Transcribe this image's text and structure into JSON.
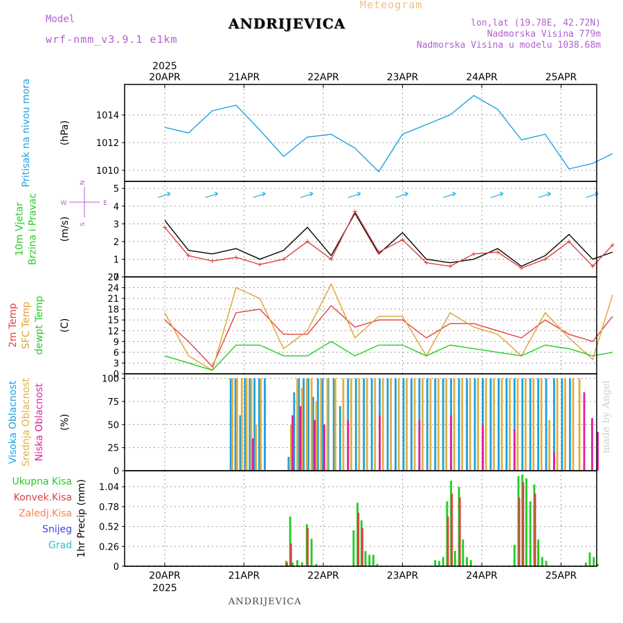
{
  "header": {
    "product": "Meteogram",
    "station": "ANDRIJEVICA",
    "model_label": "Model",
    "model": "wrf-nmm_v3.9.1 e1km",
    "lonlat": "lon,lat (19.78E, 42.72N)",
    "elevation": "Nadmorska Visina 779m",
    "model_elevation": "Nadmorska Visina u modelu 1038.68m"
  },
  "footer": {
    "station": "ANDRIJEVICA",
    "watermark": "made by Angel"
  },
  "time_axis": {
    "year": "2025",
    "days": [
      "20APR",
      "21APR",
      "22APR",
      "23APR",
      "24APR",
      "25APR"
    ]
  },
  "colors": {
    "pressure": "#1ea0e0",
    "t2m": "#e04040",
    "sfc": "#e0a030",
    "dewpt": "#22cc22",
    "high_cloud": "#1ea0e0",
    "mid_cloud": "#e0b040",
    "low_cloud": "#e020a0",
    "total_precip": "#22cc22",
    "conv_precip": "#e04040",
    "grid_precip": "#ff8040",
    "snow": "#4040e0",
    "hail": "#30c0c0",
    "wind_label": "#22cc22",
    "compass": "#b060d0"
  },
  "chart_data": [
    {
      "type": "line",
      "ylabel": "(hPa)",
      "side_labels": [
        "Pritisak na nivou mora"
      ],
      "ylim": [
        1009.2,
        1016.2
      ],
      "yticks": [
        "1010",
        "1012",
        "1014"
      ],
      "x_days": [
        0,
        0.3,
        0.6,
        0.9,
        1.2,
        1.5,
        1.8,
        2.1,
        2.4,
        2.7,
        3.0,
        3.3,
        3.6,
        3.9,
        4.2,
        4.5,
        4.8,
        5.1,
        5.4,
        5.65
      ],
      "series": [
        {
          "key": "pressure",
          "values": [
            1013.1,
            1012.7,
            1014.3,
            1014.7,
            1012.9,
            1011.0,
            1012.4,
            1012.6,
            1011.6,
            1009.9,
            1012.6,
            1013.3,
            1014.0,
            1015.4,
            1014.4,
            1012.2,
            1012.6,
            1010.1,
            1010.5,
            1011.2
          ]
        }
      ]
    },
    {
      "type": "line",
      "ylabel": "(m/s)",
      "side_labels": [
        "10m Vjetar",
        "Brzina i Pravac"
      ],
      "compass": [
        "N",
        "S",
        "W",
        "E"
      ],
      "ylim": [
        0,
        5.4
      ],
      "yticks": [
        "0",
        "1",
        "2",
        "3",
        "4",
        "5"
      ],
      "x_days": [
        0,
        0.3,
        0.6,
        0.9,
        1.2,
        1.5,
        1.8,
        2.1,
        2.4,
        2.7,
        3.0,
        3.3,
        3.6,
        3.9,
        4.2,
        4.5,
        4.8,
        5.1,
        5.4,
        5.65
      ],
      "series": [
        {
          "key": "wind_speed",
          "values": [
            3.2,
            1.5,
            1.3,
            1.6,
            1.0,
            1.5,
            2.8,
            1.2,
            3.6,
            1.3,
            2.5,
            1.0,
            0.8,
            1.0,
            1.6,
            0.6,
            1.2,
            2.4,
            1.0,
            1.4
          ]
        },
        {
          "key": "wind_gust",
          "values": [
            2.8,
            1.2,
            0.9,
            1.1,
            0.7,
            1.0,
            2.0,
            1.0,
            3.7,
            1.4,
            2.1,
            0.8,
            0.6,
            1.3,
            1.4,
            0.5,
            1.0,
            2.0,
            0.6,
            1.8
          ]
        }
      ]
    },
    {
      "type": "line",
      "ylabel": "(C)",
      "side_labels": [
        "2m Temp",
        "SFC Temp",
        "dewpt Temp"
      ],
      "ylim": [
        0,
        27
      ],
      "yticks": [
        "0",
        "3",
        "6",
        "9",
        "12",
        "15",
        "18",
        "21",
        "24",
        "27"
      ],
      "x_days": [
        0,
        0.3,
        0.6,
        0.9,
        1.2,
        1.5,
        1.8,
        2.1,
        2.4,
        2.7,
        3.0,
        3.3,
        3.6,
        3.9,
        4.2,
        4.5,
        4.8,
        5.1,
        5.4,
        5.65
      ],
      "series": [
        {
          "key": "t2m",
          "values": [
            15,
            9,
            2,
            17,
            18,
            11,
            11,
            19,
            13,
            15,
            15,
            10,
            14,
            14,
            12,
            10,
            15,
            11,
            9,
            16
          ]
        },
        {
          "key": "sfc",
          "values": [
            17,
            5,
            1,
            24,
            21,
            7,
            12,
            25,
            10,
            16,
            16,
            5,
            17,
            13,
            11,
            5,
            17,
            10,
            4,
            22
          ]
        },
        {
          "key": "dewpt",
          "values": [
            5,
            3,
            1,
            8,
            8,
            5,
            5,
            9,
            5,
            8,
            8,
            5,
            8,
            7,
            6,
            5,
            8,
            7,
            5,
            6
          ]
        }
      ]
    },
    {
      "type": "bar",
      "ylabel": "(%)",
      "side_labels": [
        "Visoka Oblacnost",
        "Srednja Oblacnost",
        "Niska Oblacnost"
      ],
      "ylim": [
        0,
        105
      ],
      "yticks": [
        "0",
        "25",
        "50",
        "75",
        "100"
      ],
      "bar_width_days": 0.025,
      "series": [
        {
          "key": "high_cloud",
          "x": [
            0.82,
            0.88,
            0.94,
            1.0,
            1.06,
            1.12,
            1.18,
            1.25,
            1.55,
            1.62,
            1.68,
            1.74,
            1.8,
            1.86,
            1.92,
            1.98,
            2.05,
            2.12,
            2.2,
            2.3,
            2.4,
            2.5,
            2.6,
            2.7,
            2.8,
            2.9,
            3.0,
            3.1,
            3.2,
            3.3,
            3.4,
            3.5,
            3.6,
            3.7,
            3.8,
            3.9,
            4.0,
            4.1,
            4.2,
            4.3,
            4.4,
            4.5,
            4.6,
            4.7,
            4.8,
            4.9,
            5.0,
            5.1
          ],
          "values": [
            100,
            100,
            60,
            100,
            100,
            100,
            100,
            100,
            15,
            85,
            100,
            100,
            100,
            80,
            100,
            100,
            100,
            100,
            70,
            100,
            100,
            100,
            100,
            100,
            100,
            100,
            100,
            100,
            100,
            100,
            100,
            100,
            100,
            100,
            100,
            100,
            100,
            100,
            100,
            100,
            100,
            100,
            100,
            100,
            100,
            100,
            100,
            100
          ]
        },
        {
          "key": "mid_cloud",
          "x": [
            0.84,
            0.9,
            0.96,
            1.02,
            1.08,
            1.14,
            1.2,
            1.58,
            1.66,
            1.72,
            1.78,
            1.84,
            1.9,
            1.96,
            2.04,
            2.14,
            2.24,
            2.34,
            2.44,
            2.54,
            2.64,
            2.74,
            2.84,
            2.94,
            3.04,
            3.14,
            3.24,
            3.34,
            3.44,
            3.54,
            3.64,
            3.74,
            3.84,
            3.94,
            4.04,
            4.14,
            4.24,
            4.34,
            4.44,
            4.54,
            4.64,
            4.74,
            4.84,
            4.94,
            5.04,
            5.14,
            5.22
          ],
          "values": [
            100,
            100,
            100,
            100,
            100,
            50,
            100,
            50,
            100,
            90,
            100,
            100,
            75,
            100,
            100,
            100,
            100,
            100,
            100,
            100,
            100,
            100,
            100,
            100,
            100,
            100,
            100,
            100,
            100,
            100,
            100,
            100,
            100,
            100,
            100,
            100,
            100,
            100,
            100,
            100,
            100,
            100,
            55,
            100,
            100,
            100,
            100
          ]
        },
        {
          "key": "low_cloud",
          "x": [
            1.1,
            1.6,
            1.7,
            1.88,
            2.0,
            2.3,
            2.7,
            3.2,
            3.6,
            4.0,
            4.4,
            4.9,
            5.28,
            5.38,
            5.45
          ],
          "values": [
            35,
            60,
            70,
            55,
            50,
            55,
            60,
            55,
            60,
            50,
            45,
            20,
            85,
            57,
            42
          ]
        }
      ]
    },
    {
      "type": "bar",
      "ylabel": "1hr Precip (mm)",
      "side_labels": [
        "Ukupna Kisa",
        "Konvek.Kisa",
        "Zaledj.Kisa",
        "Snijeg",
        "Grad"
      ],
      "ylim": [
        0,
        1.25
      ],
      "yticks": [
        "0",
        "0.26",
        "0.52",
        "0.78",
        "1.04"
      ],
      "bar_width_days": 0.025,
      "series": [
        {
          "key": "total_precip",
          "x": [
            1.52,
            1.57,
            1.6,
            1.66,
            1.72,
            1.78,
            1.84,
            1.9,
            2.37,
            2.42,
            2.47,
            2.52,
            2.57,
            2.62,
            2.67,
            3.4,
            3.45,
            3.5,
            3.55,
            3.6,
            3.65,
            3.7,
            3.75,
            3.8,
            3.85,
            4.4,
            4.45,
            4.5,
            4.55,
            4.6,
            4.65,
            4.7,
            4.75,
            4.8,
            5.3,
            5.35,
            5.4,
            5.45
          ],
          "values": [
            0.07,
            0.65,
            0.05,
            0.08,
            0.05,
            0.55,
            0.36,
            0.03,
            0.47,
            0.83,
            0.6,
            0.2,
            0.15,
            0.15,
            0.03,
            0.08,
            0.07,
            0.12,
            0.85,
            1.12,
            0.2,
            1.04,
            0.35,
            0.12,
            0.08,
            0.28,
            1.18,
            1.2,
            1.15,
            0.85,
            1.07,
            0.35,
            0.12,
            0.07,
            0.05,
            0.18,
            0.12,
            0.03
          ]
        },
        {
          "key": "conv_precip",
          "x": [
            1.53,
            1.58,
            1.79,
            2.43,
            2.48,
            3.56,
            3.61,
            3.71,
            4.46,
            4.51,
            4.66
          ],
          "values": [
            0.05,
            0.3,
            0.5,
            0.7,
            0.5,
            0.65,
            0.95,
            0.9,
            0.9,
            1.1,
            0.95
          ]
        }
      ]
    }
  ]
}
